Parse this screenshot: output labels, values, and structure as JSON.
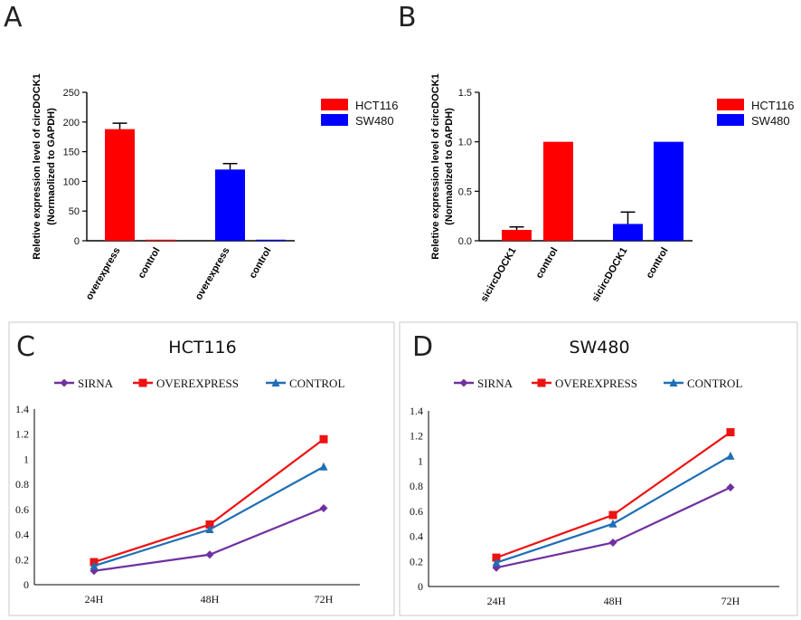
{
  "panels": {
    "A": "A",
    "B": "B",
    "C": "C",
    "D": "D"
  },
  "chart_data": [
    {
      "id": "A",
      "type": "bar",
      "ylabel_line1": "Reletive expression level of circDOCK1",
      "ylabel_line2": "(Normaolized to GAPDH)",
      "ylim": [
        0,
        250
      ],
      "yticks": [
        "0",
        "50",
        "100",
        "150",
        "200",
        "250"
      ],
      "ytick_values": [
        0,
        50,
        100,
        150,
        200,
        250
      ],
      "categories": [
        "overexpress",
        "control",
        "overexpress",
        "control"
      ],
      "values": [
        188,
        1,
        120,
        1
      ],
      "errors": [
        10,
        0,
        10,
        0
      ],
      "bar_series": [
        "HCT116",
        "HCT116",
        "SW480",
        "SW480"
      ],
      "legend": [
        {
          "name": "HCT116",
          "color": "#ff0000"
        },
        {
          "name": "SW480",
          "color": "#0000ff"
        }
      ]
    },
    {
      "id": "B",
      "type": "bar",
      "ylabel_line1": "Reletive expression level of circDOCK1",
      "ylabel_line2": "(Normaolized to GAPDH)",
      "ylim": [
        0,
        1.5
      ],
      "yticks": [
        "0.0",
        "0.5",
        "1.0",
        "1.5"
      ],
      "ytick_values": [
        0,
        0.5,
        1.0,
        1.5
      ],
      "categories": [
        "sicircDOCK1",
        "control",
        "sicircDOCK1",
        "control"
      ],
      "values": [
        0.11,
        1.0,
        0.17,
        1.0
      ],
      "errors": [
        0.03,
        0,
        0.12,
        0
      ],
      "bar_series": [
        "HCT116",
        "HCT116",
        "SW480",
        "SW480"
      ],
      "legend": [
        {
          "name": "HCT116",
          "color": "#ff0000"
        },
        {
          "name": "SW480",
          "color": "#0000ff"
        }
      ]
    },
    {
      "id": "C",
      "type": "line",
      "title": "HCT116",
      "categories": [
        "24H",
        "48H",
        "72H"
      ],
      "ylim": [
        0,
        1.4
      ],
      "yticks": [
        "0",
        "0.2",
        "0.4",
        "0.6",
        "0.8",
        "1",
        "1.2",
        "1.4"
      ],
      "ytick_values": [
        0,
        0.2,
        0.4,
        0.6,
        0.8,
        1.0,
        1.2,
        1.4
      ],
      "series": [
        {
          "name": "SIRNA",
          "values": [
            0.11,
            0.24,
            0.61
          ],
          "color": "#7030a0",
          "marker": "diamond"
        },
        {
          "name": "OVEREXPRESS",
          "values": [
            0.18,
            0.48,
            1.16
          ],
          "color": "#ee1111",
          "marker": "square"
        },
        {
          "name": "CONTROL",
          "values": [
            0.15,
            0.44,
            0.94
          ],
          "color": "#1f6fb4",
          "marker": "triangle"
        }
      ]
    },
    {
      "id": "D",
      "type": "line",
      "title": "SW480",
      "categories": [
        "24H",
        "48H",
        "72H"
      ],
      "ylim": [
        0,
        1.4
      ],
      "yticks": [
        "0",
        "0.2",
        "0.4",
        "0.6",
        "0.8",
        "1",
        "1.2",
        "1.4"
      ],
      "ytick_values": [
        0,
        0.2,
        0.4,
        0.6,
        0.8,
        1.0,
        1.2,
        1.4
      ],
      "series": [
        {
          "name": "SIRNA",
          "values": [
            0.15,
            0.35,
            0.79
          ],
          "color": "#7030a0",
          "marker": "diamond"
        },
        {
          "name": "OVEREXPRESS",
          "values": [
            0.23,
            0.57,
            1.23
          ],
          "color": "#ee1111",
          "marker": "square"
        },
        {
          "name": "CONTROL",
          "values": [
            0.19,
            0.5,
            1.04
          ],
          "color": "#1f6fb4",
          "marker": "triangle"
        }
      ]
    }
  ]
}
